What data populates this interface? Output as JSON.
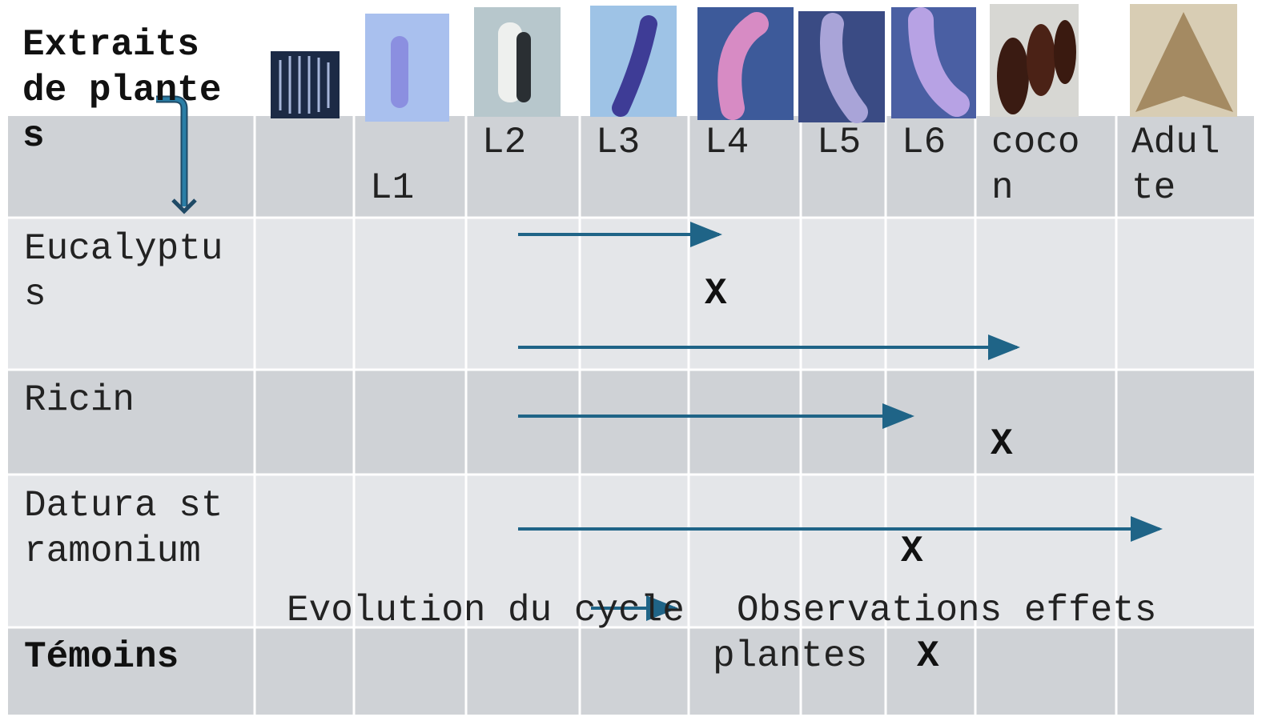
{
  "table": {
    "corner": "Extraits de plantes",
    "columns": [
      "L1",
      "L2",
      "L3",
      "L4",
      "L5",
      "L6",
      "cocon",
      "Adulte"
    ],
    "rows": [
      {
        "label": "Eucalyptus",
        "mark": "X"
      },
      {
        "label": "Ricin",
        "mark": "X"
      },
      {
        "label": "Datura stramonium",
        "mark": "X"
      },
      {
        "label": "Témoins",
        "mark": "X"
      }
    ]
  },
  "legend": {
    "arrow_text": "Evolution du cycle",
    "x_text": "Observations effets plantes"
  }
}
